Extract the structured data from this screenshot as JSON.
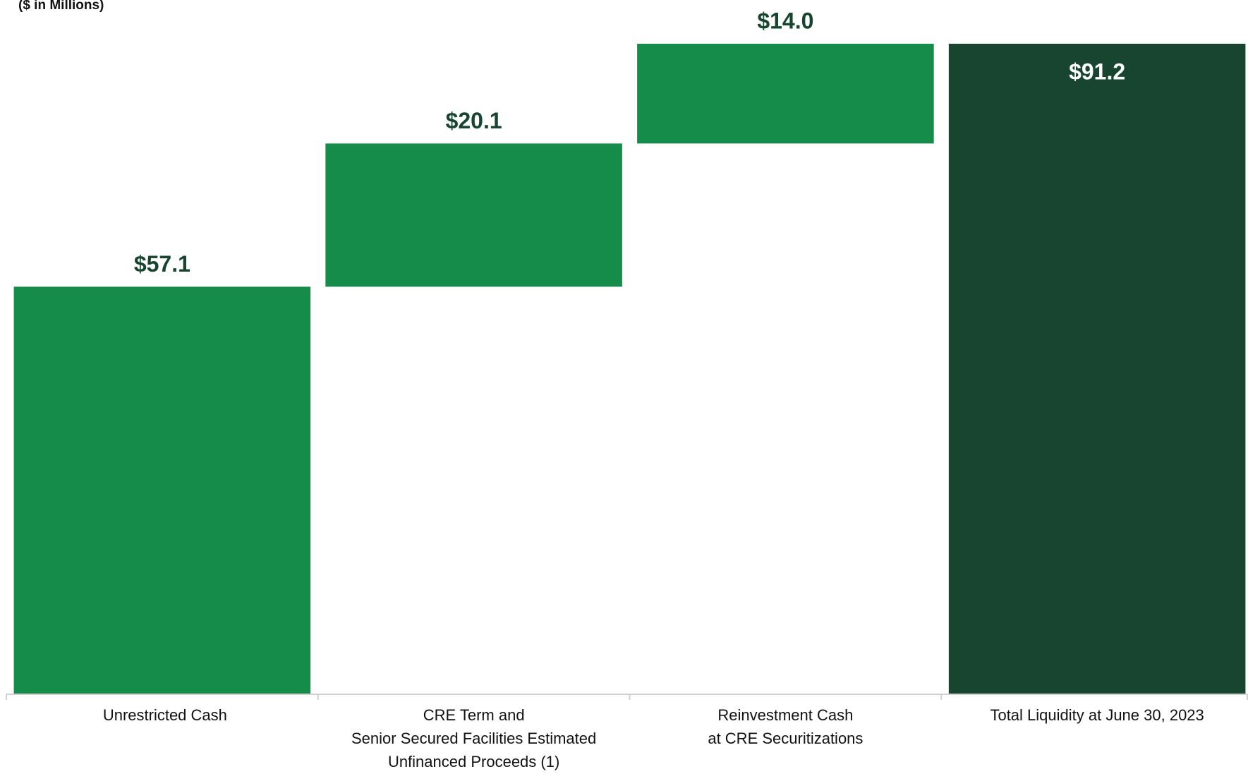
{
  "chart_data": {
    "type": "waterfall",
    "subtitle": "($ in Millions)",
    "categories": [
      "Unrestricted Cash",
      "CRE Term and\nSenior Secured Facilities Estimated\nUnfinanced Proceeds (1)",
      "Reinvestment Cash\nat CRE Securitizations",
      "Total Liquidity at June 30, 2023"
    ],
    "values": [
      57.1,
      20.1,
      14.0,
      91.2
    ],
    "value_labels": [
      "$57.1",
      "$20.1",
      "$14.0",
      "$91.2"
    ],
    "is_total": [
      false,
      false,
      false,
      true
    ],
    "colors": [
      "#168c4a",
      "#168c4a",
      "#168c4a",
      "#17452f"
    ],
    "label_color": "#17452f",
    "total_label_color": "#ffffff"
  }
}
